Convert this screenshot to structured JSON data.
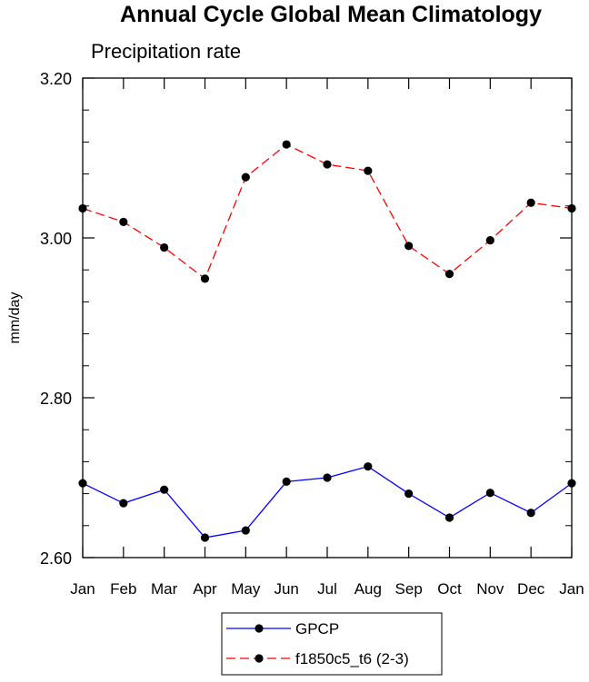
{
  "chart_data": {
    "type": "line",
    "title": "Annual Cycle Global Mean Climatology",
    "subtitle": "Precipitation rate",
    "ylabel": "mm/day",
    "xlabel": "",
    "categories": [
      "Jan",
      "Feb",
      "Mar",
      "Apr",
      "May",
      "Jun",
      "Jul",
      "Aug",
      "Sep",
      "Oct",
      "Nov",
      "Dec",
      "Jan"
    ],
    "ylim": [
      2.6,
      3.2
    ],
    "yticks": [
      "3.20",
      "3.00",
      "2.80",
      "2.60"
    ],
    "ytick_values": [
      3.2,
      3.0,
      2.8,
      2.6
    ],
    "grid": false,
    "legend_position": "bottom-center",
    "series": [
      {
        "name": "GPCP",
        "color": "#0000ff",
        "line_style": "solid",
        "marker": "filled-circle",
        "values": [
          2.693,
          2.668,
          2.685,
          2.625,
          2.634,
          2.695,
          2.7,
          2.714,
          2.68,
          2.65,
          2.681,
          2.656,
          2.693
        ]
      },
      {
        "name": "f1850c5_t6 (2-3)",
        "color": "#ff0000",
        "line_style": "dashed",
        "marker": "filled-circle",
        "values": [
          3.037,
          3.02,
          2.988,
          2.949,
          3.076,
          3.117,
          3.092,
          3.084,
          2.99,
          2.955,
          2.997,
          3.044,
          3.037
        ]
      }
    ]
  }
}
